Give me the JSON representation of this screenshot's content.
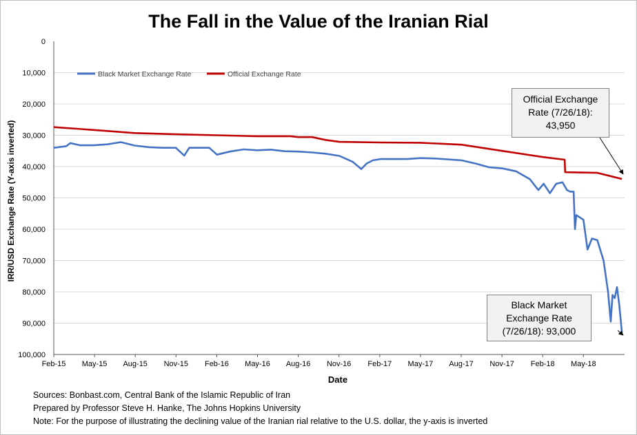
{
  "chart_data": {
    "type": "line",
    "title": "The Fall in the Value of the Iranian Rial",
    "xlabel": "Date",
    "ylabel": "IRR/USD Exchange Rate (Y-axis inverted)",
    "ylim": [
      0,
      100000
    ],
    "y_inverted": true,
    "y_ticks": [
      "0",
      "10,000",
      "20,000",
      "30,000",
      "40,000",
      "50,000",
      "60,000",
      "70,000",
      "80,000",
      "90,000",
      "100,000"
    ],
    "x_ticks": [
      "Feb-15",
      "May-15",
      "Aug-15",
      "Nov-15",
      "Feb-16",
      "May-16",
      "Aug-16",
      "Nov-16",
      "Feb-17",
      "May-17",
      "Aug-17",
      "Nov-17",
      "Feb-18",
      "May-18"
    ],
    "grid": "horizontal",
    "legend_position": "top-left",
    "series": [
      {
        "name": "Black Market Exchange Rate",
        "color": "#4472c4",
        "points": [
          [
            "2015-02-01",
            34000
          ],
          [
            "2015-03-01",
            33500
          ],
          [
            "2015-03-10",
            32500
          ],
          [
            "2015-04-01",
            33200
          ],
          [
            "2015-05-01",
            33200
          ],
          [
            "2015-06-01",
            32900
          ],
          [
            "2015-07-01",
            32200
          ],
          [
            "2015-08-01",
            33300
          ],
          [
            "2015-09-01",
            33800
          ],
          [
            "2015-10-01",
            34000
          ],
          [
            "2015-11-01",
            34000
          ],
          [
            "2015-11-20",
            36500
          ],
          [
            "2015-12-01",
            34000
          ],
          [
            "2016-01-15",
            34000
          ],
          [
            "2016-02-01",
            36200
          ],
          [
            "2016-03-01",
            35200
          ],
          [
            "2016-04-01",
            34500
          ],
          [
            "2016-05-01",
            34800
          ],
          [
            "2016-06-01",
            34600
          ],
          [
            "2016-07-01",
            35100
          ],
          [
            "2016-08-01",
            35200
          ],
          [
            "2016-09-01",
            35500
          ],
          [
            "2016-10-01",
            35900
          ],
          [
            "2016-11-01",
            36600
          ],
          [
            "2016-12-01",
            38500
          ],
          [
            "2016-12-20",
            40800
          ],
          [
            "2017-01-01",
            39000
          ],
          [
            "2017-01-15",
            38000
          ],
          [
            "2017-02-01",
            37600
          ],
          [
            "2017-03-01",
            37600
          ],
          [
            "2017-04-01",
            37600
          ],
          [
            "2017-05-01",
            37300
          ],
          [
            "2017-06-01",
            37400
          ],
          [
            "2017-07-01",
            37700
          ],
          [
            "2017-08-01",
            38000
          ],
          [
            "2017-09-01",
            39000
          ],
          [
            "2017-10-01",
            40200
          ],
          [
            "2017-11-01",
            40600
          ],
          [
            "2017-12-01",
            41500
          ],
          [
            "2018-01-01",
            44000
          ],
          [
            "2018-01-20",
            47500
          ],
          [
            "2018-02-01",
            45500
          ],
          [
            "2018-02-15",
            48500
          ],
          [
            "2018-03-01",
            45500
          ],
          [
            "2018-03-15",
            45000
          ],
          [
            "2018-03-25",
            47500
          ],
          [
            "2018-04-01",
            48000
          ],
          [
            "2018-04-09",
            48000
          ],
          [
            "2018-04-12",
            60000
          ],
          [
            "2018-04-15",
            55500
          ],
          [
            "2018-05-01",
            57000
          ],
          [
            "2018-05-10",
            66500
          ],
          [
            "2018-05-20",
            63000
          ],
          [
            "2018-06-01",
            63500
          ],
          [
            "2018-06-15",
            70000
          ],
          [
            "2018-06-25",
            80000
          ],
          [
            "2018-07-01",
            89500
          ],
          [
            "2018-07-05",
            81000
          ],
          [
            "2018-07-10",
            82000
          ],
          [
            "2018-07-15",
            78500
          ],
          [
            "2018-07-20",
            84000
          ],
          [
            "2018-07-24",
            90000
          ],
          [
            "2018-07-26",
            93000
          ]
        ]
      },
      {
        "name": "Official Exchange Rate",
        "color": "#c00000",
        "points": [
          [
            "2015-02-01",
            27400
          ],
          [
            "2015-05-01",
            28300
          ],
          [
            "2015-08-01",
            29300
          ],
          [
            "2015-11-01",
            29700
          ],
          [
            "2016-02-01",
            30000
          ],
          [
            "2016-05-01",
            30300
          ],
          [
            "2016-07-15",
            30300
          ],
          [
            "2016-08-01",
            30600
          ],
          [
            "2016-09-01",
            30600
          ],
          [
            "2016-10-01",
            31500
          ],
          [
            "2016-11-01",
            32100
          ],
          [
            "2017-02-01",
            32300
          ],
          [
            "2017-05-01",
            32400
          ],
          [
            "2017-08-01",
            33000
          ],
          [
            "2017-11-01",
            35000
          ],
          [
            "2018-02-01",
            37000
          ],
          [
            "2018-03-20",
            37800
          ],
          [
            "2018-03-21",
            41800
          ],
          [
            "2018-06-01",
            42000
          ],
          [
            "2018-07-26",
            43950
          ]
        ]
      }
    ],
    "annotations": [
      {
        "id": "official",
        "lines": [
          "Official Exchange",
          "Rate (7/26/18):",
          "43,950"
        ]
      },
      {
        "id": "black",
        "lines": [
          "Black Market",
          "Exchange Rate",
          "(7/26/18): 93,000"
        ]
      }
    ]
  },
  "notes": [
    "Sources: Bonbast.com, Central Bank of the Islamic Republic of Iran",
    "Prepared by Professor Steve H. Hanke, The Johns Hopkins University",
    "Note: For the purpose of illustrating the declining value of the Iranian rial relative to the U.S. dollar, the y-axis is inverted"
  ]
}
